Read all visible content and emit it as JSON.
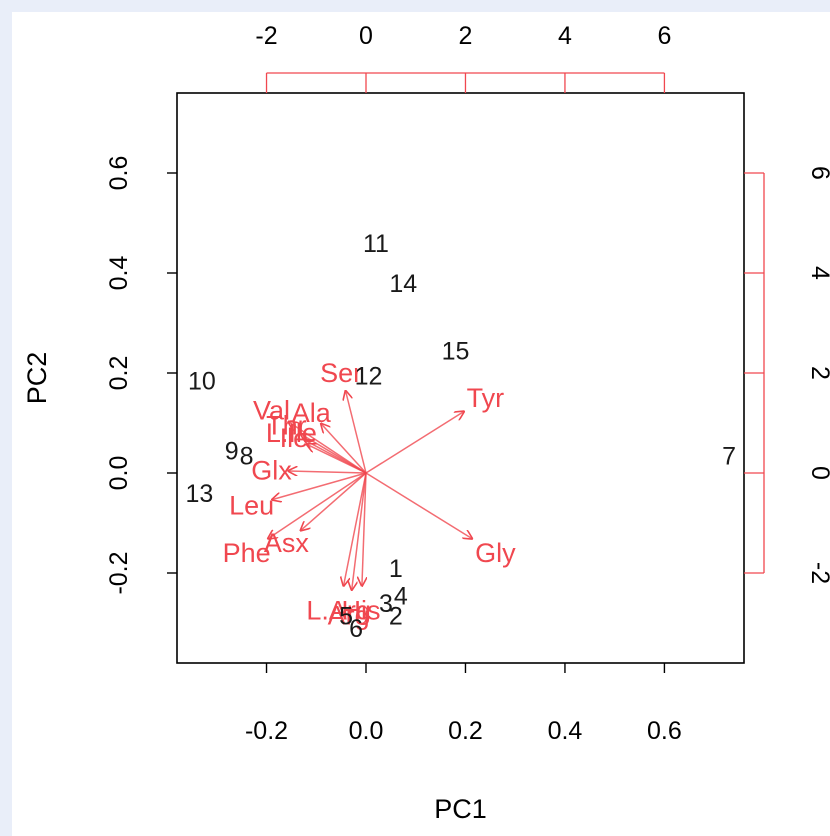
{
  "chart_data": {
    "type": "scatter",
    "subtype": "biplot",
    "title": "",
    "xlabel": "PC1",
    "ylabel": "PC2",
    "xlim": [
      -0.38,
      0.76
    ],
    "ylim": [
      -0.38,
      0.76
    ],
    "x_ticks": [
      "-0.2",
      "0.0",
      "0.2",
      "0.4",
      "0.6"
    ],
    "y_ticks": [
      "-0.2",
      "0.0",
      "0.2",
      "0.4",
      "0.6"
    ],
    "top_x_ticks": [
      "-2",
      "0",
      "2",
      "4",
      "6"
    ],
    "right_y_ticks": [
      "-2",
      "0",
      "2",
      "4",
      "6"
    ],
    "loading_scale": 10,
    "arrow_color": "#f0474f",
    "observations": [
      {
        "label": "1",
        "x": 0.06,
        "y": -0.19
      },
      {
        "label": "2",
        "x": 0.06,
        "y": -0.285
      },
      {
        "label": "3",
        "x": 0.04,
        "y": -0.26
      },
      {
        "label": "4",
        "x": 0.07,
        "y": -0.245
      },
      {
        "label": "5",
        "x": -0.04,
        "y": -0.285
      },
      {
        "label": "6",
        "x": -0.02,
        "y": -0.31
      },
      {
        "label": "7",
        "x": 0.73,
        "y": 0.035
      },
      {
        "label": "8",
        "x": -0.24,
        "y": 0.035
      },
      {
        "label": "9",
        "x": -0.27,
        "y": 0.045
      },
      {
        "label": "10",
        "x": -0.33,
        "y": 0.185
      },
      {
        "label": "11",
        "x": 0.02,
        "y": 0.46
      },
      {
        "label": "12",
        "x": 0.005,
        "y": 0.195
      },
      {
        "label": "13",
        "x": -0.335,
        "y": -0.04
      },
      {
        "label": "14",
        "x": 0.075,
        "y": 0.38
      },
      {
        "label": "15",
        "x": 0.18,
        "y": 0.245
      }
    ],
    "variables": [
      {
        "name": "Ser",
        "x": -0.5,
        "y": 2.0
      },
      {
        "name": "Tyr",
        "x": 2.4,
        "y": 1.5
      },
      {
        "name": "Gly",
        "x": 2.6,
        "y": -1.6
      },
      {
        "name": "Val",
        "x": -1.9,
        "y": 1.25
      },
      {
        "name": "Ala",
        "x": -1.1,
        "y": 1.2
      },
      {
        "name": "Thr",
        "x": -1.6,
        "y": 0.95
      },
      {
        "name": "L.Ile",
        "x": -1.5,
        "y": 0.8
      },
      {
        "name": "Ile",
        "x": -1.45,
        "y": 0.7
      },
      {
        "name": "Glx",
        "x": -1.9,
        "y": 0.05
      },
      {
        "name": "Leu",
        "x": -2.3,
        "y": -0.65
      },
      {
        "name": "Phe",
        "x": -2.4,
        "y": -1.6
      },
      {
        "name": "Asx",
        "x": -1.6,
        "y": -1.4
      },
      {
        "name": "L.Arg",
        "x": -0.55,
        "y": -2.75
      },
      {
        "name": "Arg",
        "x": -0.35,
        "y": -2.85
      },
      {
        "name": "His",
        "x": -0.1,
        "y": -2.75
      }
    ]
  }
}
